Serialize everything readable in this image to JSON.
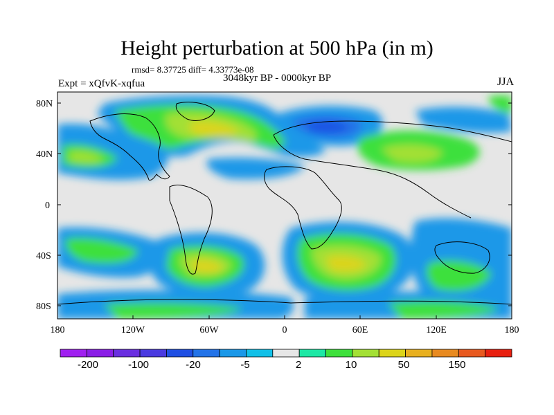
{
  "header": {
    "title": "Height perturbation at 500 hPa (in m)",
    "stats": "rmsd= 8.37725 diff= 4.33773e-08",
    "experiment": "Expt = xQfvK-xqfua",
    "period": "3048kyr BP - 0000kyr BP",
    "season": "JJA"
  },
  "axes": {
    "lat_ticks": [
      "80N",
      "40N",
      "0",
      "40S",
      "80S"
    ],
    "lon_ticks": [
      "180",
      "120W",
      "60W",
      "0",
      "60E",
      "120E",
      "180"
    ]
  },
  "colorbar": {
    "colors": [
      "#a020f0",
      "#8a1ee6",
      "#6a2fe0",
      "#4a3ae0",
      "#1f4fe3",
      "#2373e8",
      "#1b98e8",
      "#12c0e8",
      "#e6e6e6",
      "#1de8a5",
      "#3ee03c",
      "#a3e035",
      "#dcd41a",
      "#e8b020",
      "#e88a20",
      "#e85a20",
      "#e82010"
    ],
    "labels": [
      "-200",
      "-100",
      "-20",
      "-5",
      "2",
      "10",
      "50",
      "150"
    ]
  }
}
